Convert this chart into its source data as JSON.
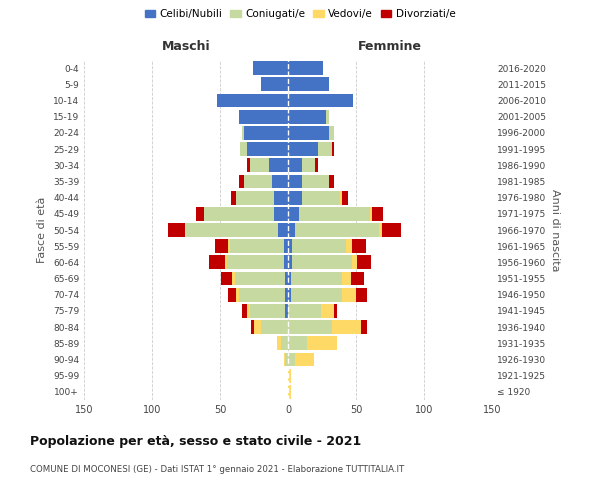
{
  "age_groups": [
    "100+",
    "95-99",
    "90-94",
    "85-89",
    "80-84",
    "75-79",
    "70-74",
    "65-69",
    "60-64",
    "55-59",
    "50-54",
    "45-49",
    "40-44",
    "35-39",
    "30-34",
    "25-29",
    "20-24",
    "15-19",
    "10-14",
    "5-9",
    "0-4"
  ],
  "birth_years": [
    "≤ 1920",
    "1921-1925",
    "1926-1930",
    "1931-1935",
    "1936-1940",
    "1941-1945",
    "1946-1950",
    "1951-1955",
    "1956-1960",
    "1961-1965",
    "1966-1970",
    "1971-1975",
    "1976-1980",
    "1981-1985",
    "1986-1990",
    "1991-1995",
    "1996-2000",
    "2001-2005",
    "2006-2010",
    "2011-2015",
    "2016-2020"
  ],
  "male": {
    "celibi": [
      0,
      0,
      0,
      0,
      0,
      2,
      2,
      2,
      3,
      3,
      7,
      10,
      10,
      12,
      14,
      30,
      32,
      36,
      52,
      20,
      26
    ],
    "coniugati": [
      0,
      0,
      2,
      5,
      20,
      26,
      34,
      37,
      42,
      40,
      68,
      52,
      28,
      20,
      14,
      5,
      2,
      0,
      0,
      0,
      0
    ],
    "vedovi": [
      0,
      0,
      1,
      3,
      5,
      2,
      2,
      2,
      1,
      1,
      1,
      0,
      0,
      0,
      0,
      0,
      0,
      0,
      0,
      0,
      0
    ],
    "divorziati": [
      0,
      0,
      0,
      0,
      2,
      4,
      6,
      8,
      12,
      10,
      12,
      6,
      4,
      4,
      2,
      0,
      0,
      0,
      0,
      0,
      0
    ]
  },
  "female": {
    "nubili": [
      0,
      0,
      0,
      0,
      0,
      0,
      2,
      2,
      3,
      3,
      5,
      8,
      10,
      10,
      10,
      22,
      30,
      28,
      48,
      30,
      26
    ],
    "coniugate": [
      0,
      0,
      5,
      14,
      32,
      24,
      38,
      38,
      44,
      40,
      62,
      52,
      28,
      20,
      10,
      10,
      4,
      2,
      0,
      0,
      0
    ],
    "vedove": [
      2,
      2,
      14,
      22,
      22,
      10,
      10,
      6,
      4,
      4,
      2,
      2,
      2,
      0,
      0,
      0,
      0,
      0,
      0,
      0,
      0
    ],
    "divorziate": [
      0,
      0,
      0,
      0,
      4,
      2,
      8,
      10,
      10,
      10,
      14,
      8,
      4,
      4,
      2,
      2,
      0,
      0,
      0,
      0,
      0
    ]
  },
  "colors": {
    "celibi": "#4472C4",
    "coniugati": "#C5D9A0",
    "vedovi": "#FFD966",
    "divorziati": "#C00000"
  },
  "title": "Popolazione per età, sesso e stato civile - 2021",
  "subtitle": "COMUNE DI MOCONESI (GE) - Dati ISTAT 1° gennaio 2021 - Elaborazione TUTTITALIA.IT",
  "ylabel_left": "Fasce di età",
  "ylabel_right": "Anni di nascita",
  "xlabel_left": "Maschi",
  "xlabel_right": "Femmine",
  "xlim": 150,
  "background": "#ffffff",
  "grid_color": "#cccccc"
}
